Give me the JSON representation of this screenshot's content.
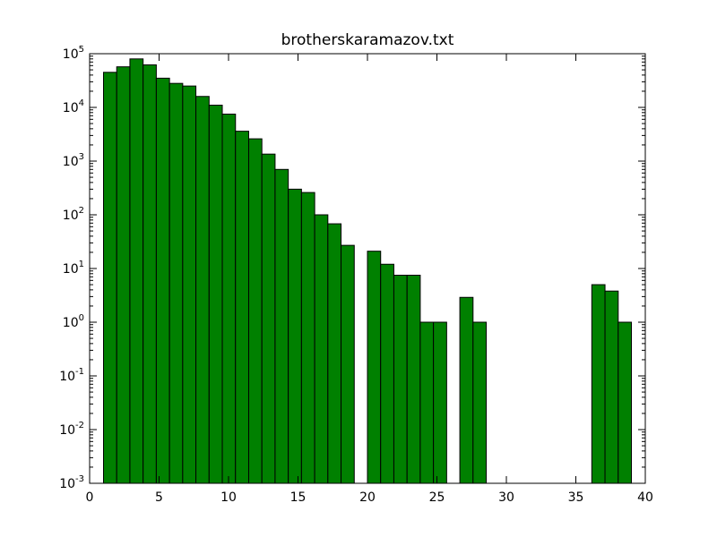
{
  "chart_data": {
    "type": "bar",
    "title": "brotherskaramazov.txt",
    "xlabel": "",
    "ylabel": "",
    "y_scale": "log",
    "xlim": [
      0,
      40
    ],
    "ylim": [
      0.001,
      100000
    ],
    "x_ticks": [
      0,
      5,
      10,
      15,
      20,
      25,
      30,
      35,
      40
    ],
    "y_ticks": [
      {
        "base": "10",
        "exp": "-3",
        "value": 0.001
      },
      {
        "base": "10",
        "exp": "-2",
        "value": 0.01
      },
      {
        "base": "10",
        "exp": "-1",
        "value": 0.1
      },
      {
        "base": "10",
        "exp": "0",
        "value": 1
      },
      {
        "base": "10",
        "exp": "1",
        "value": 10
      },
      {
        "base": "10",
        "exp": "2",
        "value": 100
      },
      {
        "base": "10",
        "exp": "3",
        "value": 1000
      },
      {
        "base": "10",
        "exp": "4",
        "value": 10000
      },
      {
        "base": "10",
        "exp": "5",
        "value": 100000
      }
    ],
    "bin_width": 0.95,
    "bar_color": "#008000",
    "edge_color": "#000000",
    "grid": false,
    "bins": [
      {
        "x": 1.0,
        "value": 45000
      },
      {
        "x": 1.95,
        "value": 57000
      },
      {
        "x": 2.9,
        "value": 80000
      },
      {
        "x": 3.85,
        "value": 62000
      },
      {
        "x": 4.8,
        "value": 35000
      },
      {
        "x": 5.75,
        "value": 28000
      },
      {
        "x": 6.7,
        "value": 25000
      },
      {
        "x": 7.65,
        "value": 16000
      },
      {
        "x": 8.6,
        "value": 11000
      },
      {
        "x": 9.55,
        "value": 7500
      },
      {
        "x": 10.5,
        "value": 3600
      },
      {
        "x": 11.45,
        "value": 2600
      },
      {
        "x": 12.4,
        "value": 1350
      },
      {
        "x": 13.35,
        "value": 700
      },
      {
        "x": 14.3,
        "value": 300
      },
      {
        "x": 15.25,
        "value": 260
      },
      {
        "x": 16.2,
        "value": 100
      },
      {
        "x": 17.15,
        "value": 68
      },
      {
        "x": 18.1,
        "value": 27
      },
      {
        "x": 19.05,
        "value": 0
      },
      {
        "x": 20.0,
        "value": 21
      },
      {
        "x": 20.95,
        "value": 12
      },
      {
        "x": 21.9,
        "value": 7.5
      },
      {
        "x": 22.85,
        "value": 7.5
      },
      {
        "x": 23.8,
        "value": 1
      },
      {
        "x": 24.75,
        "value": 1
      },
      {
        "x": 25.7,
        "value": 0
      },
      {
        "x": 26.65,
        "value": 2.9
      },
      {
        "x": 27.6,
        "value": 1
      },
      {
        "x": 28.55,
        "value": 0
      },
      {
        "x": 29.5,
        "value": 0
      },
      {
        "x": 30.45,
        "value": 0
      },
      {
        "x": 31.4,
        "value": 0
      },
      {
        "x": 32.35,
        "value": 0
      },
      {
        "x": 33.3,
        "value": 0
      },
      {
        "x": 34.25,
        "value": 0
      },
      {
        "x": 35.2,
        "value": 0
      },
      {
        "x": 36.15,
        "value": 5
      },
      {
        "x": 37.1,
        "value": 3.8
      },
      {
        "x": 38.05,
        "value": 1
      }
    ]
  }
}
